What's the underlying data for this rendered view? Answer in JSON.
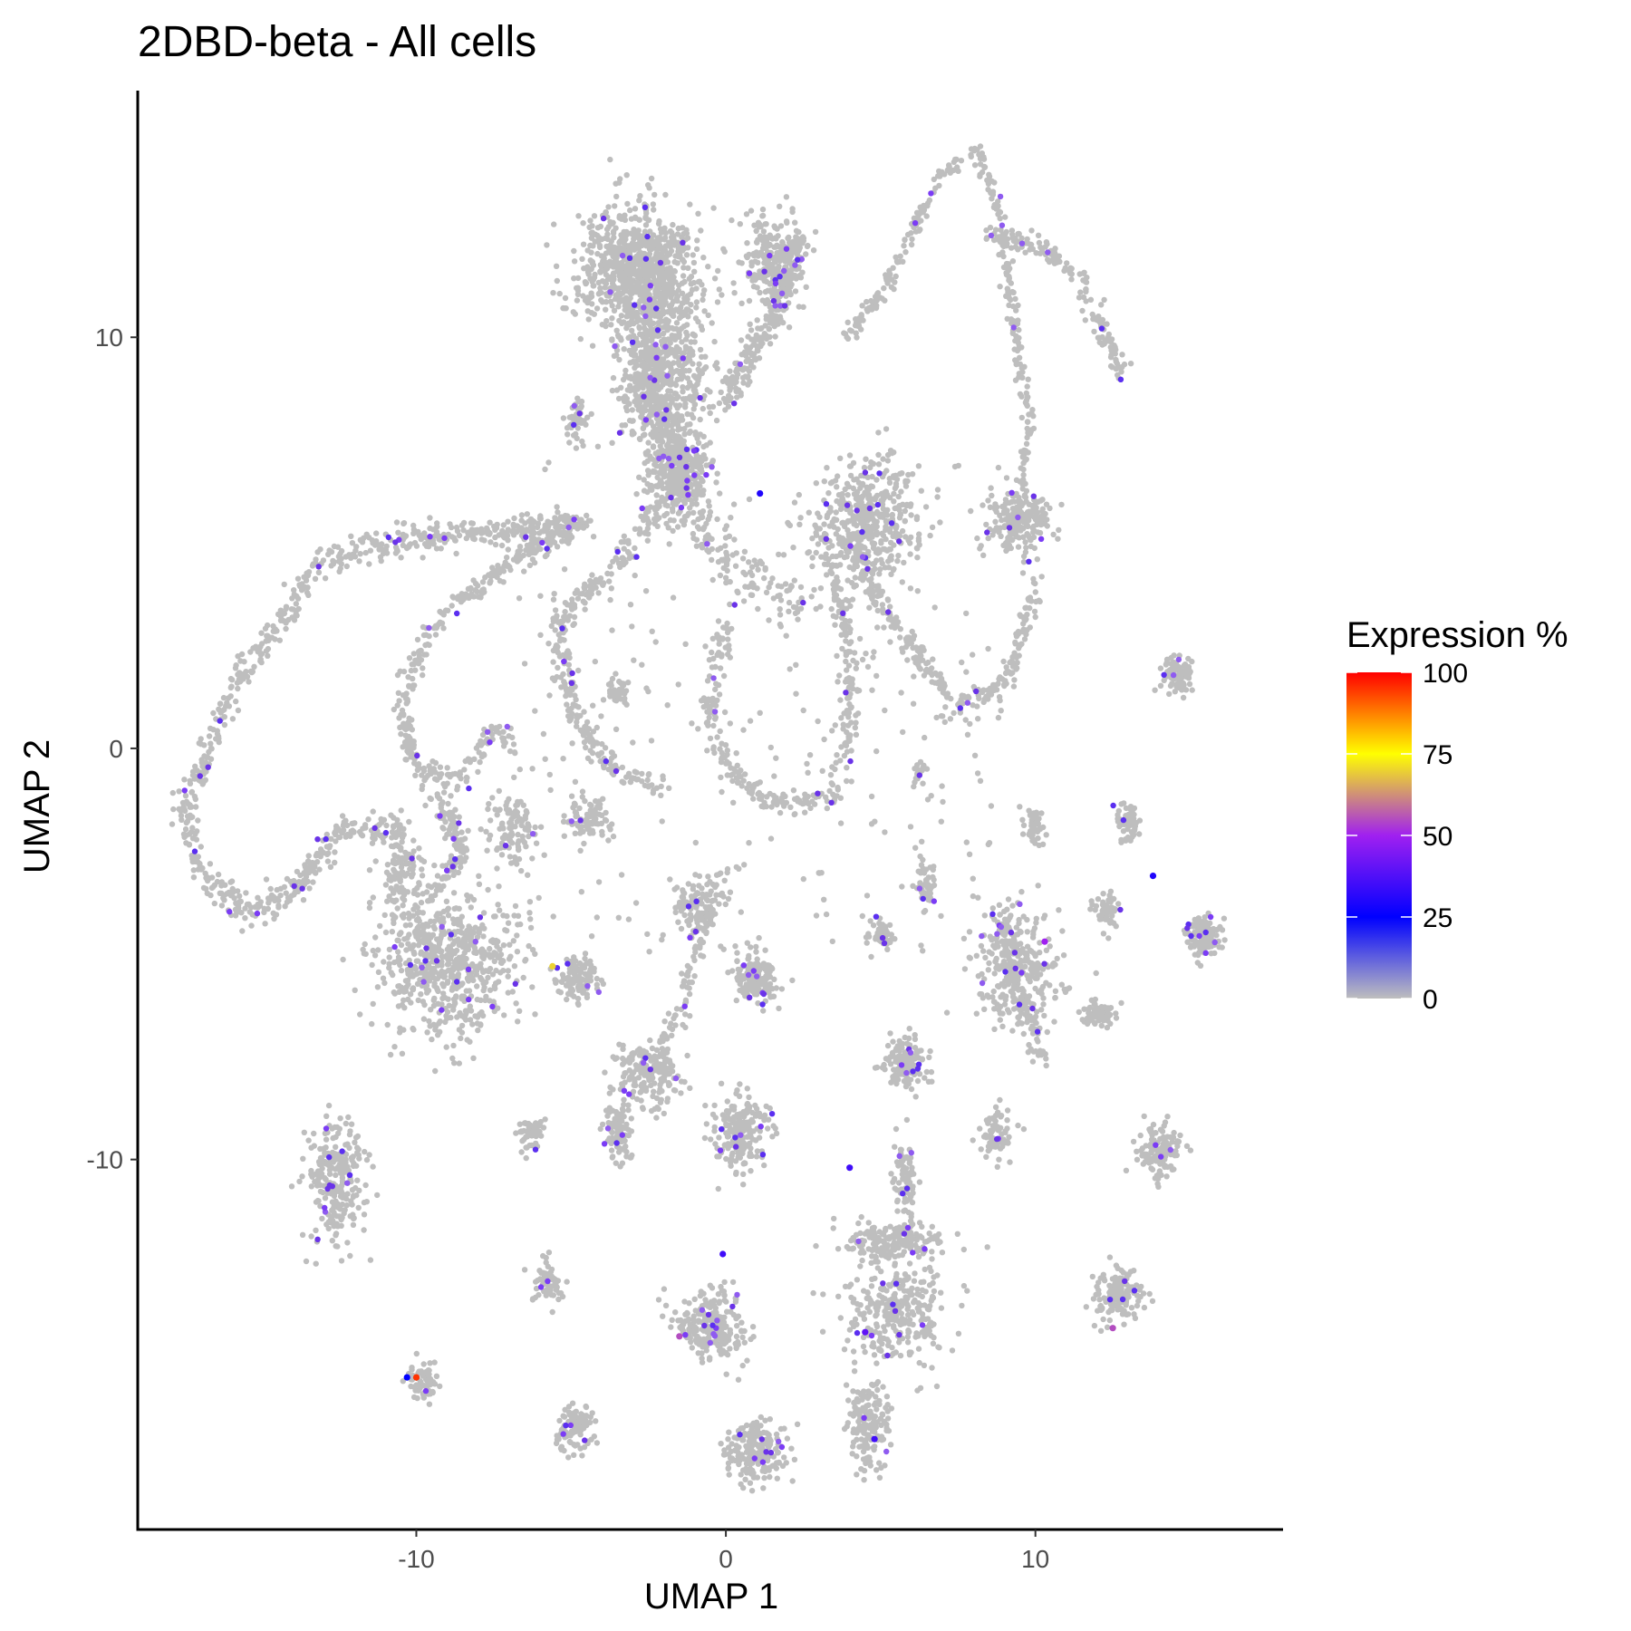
{
  "chart_data": {
    "type": "scatter",
    "title": "2DBD-beta - All cells",
    "xlabel": "UMAP 1",
    "ylabel": "UMAP 2",
    "xlim": [
      -19,
      18
    ],
    "ylim": [
      -19,
      16
    ],
    "x_ticks": [
      -10,
      0,
      10
    ],
    "y_ticks": [
      10,
      0,
      -10
    ],
    "x_tick_labels": [
      "-10",
      "0",
      "10"
    ],
    "y_tick_labels": [
      "10",
      "0",
      "-10"
    ],
    "grid": false,
    "legend": {
      "title": "Expression %",
      "placement": "right",
      "breaks": [
        100,
        75,
        50,
        25,
        0
      ],
      "labels": [
        "100",
        "75",
        "50",
        "25",
        "0"
      ],
      "gradient": [
        {
          "value": 0,
          "color": "#bebebe"
        },
        {
          "value": 25,
          "color": "#0000ff"
        },
        {
          "value": 50,
          "color": "#a020f0"
        },
        {
          "value": 75,
          "color": "#ffff00"
        },
        {
          "value": 100,
          "color": "#ff0000"
        }
      ]
    },
    "base_color": "#bebebe",
    "clusters": [
      {
        "name": "",
        "x": -2.8,
        "y": 11.6,
        "sx": 1.6,
        "sy": 1.3,
        "n": 900
      },
      {
        "name": "",
        "x": -2.0,
        "y": 9.0,
        "sx": 1.2,
        "sy": 1.5,
        "n": 500
      },
      {
        "name": "",
        "x": -1.5,
        "y": 6.8,
        "sx": 0.9,
        "sy": 0.9,
        "n": 300
      },
      {
        "name": "",
        "x": 1.5,
        "y": 11.8,
        "sx": 0.8,
        "sy": 1.0,
        "n": 250
      },
      {
        "name": "",
        "x": 4.6,
        "y": 5.5,
        "sx": 1.3,
        "sy": 1.2,
        "n": 450
      },
      {
        "name": "",
        "x": 9.5,
        "y": 5.5,
        "sx": 0.8,
        "sy": 0.6,
        "n": 200
      },
      {
        "name": "",
        "x": -9.0,
        "y": -5.2,
        "sx": 1.8,
        "sy": 1.4,
        "n": 650
      },
      {
        "name": "",
        "x": -12.6,
        "y": -10.5,
        "sx": 0.8,
        "sy": 1.3,
        "n": 250
      },
      {
        "name": "",
        "x": 0.5,
        "y": -9.3,
        "sx": 0.7,
        "sy": 0.8,
        "n": 220
      },
      {
        "name": "",
        "x": -0.5,
        "y": -14.0,
        "sx": 1.0,
        "sy": 0.7,
        "n": 260
      },
      {
        "name": "",
        "x": 1.0,
        "y": -17.1,
        "sx": 0.8,
        "sy": 0.6,
        "n": 200
      },
      {
        "name": "",
        "x": 5.5,
        "y": -13.8,
        "sx": 1.3,
        "sy": 1.0,
        "n": 300
      },
      {
        "name": "",
        "x": 4.6,
        "y": -16.5,
        "sx": 0.6,
        "sy": 0.9,
        "n": 160
      },
      {
        "name": "",
        "x": 5.5,
        "y": -12.0,
        "sx": 1.3,
        "sy": 0.4,
        "n": 200
      },
      {
        "name": "",
        "x": 5.8,
        "y": -10.5,
        "sx": 0.3,
        "sy": 0.8,
        "n": 90
      },
      {
        "name": "",
        "x": 1.0,
        "y": -5.6,
        "sx": 0.6,
        "sy": 0.5,
        "n": 150
      },
      {
        "name": "",
        "x": -4.8,
        "y": -5.6,
        "sx": 0.5,
        "sy": 0.4,
        "n": 120
      },
      {
        "name": "",
        "x": -2.5,
        "y": -7.9,
        "sx": 0.9,
        "sy": 0.7,
        "n": 180
      },
      {
        "name": "",
        "x": -3.5,
        "y": -9.3,
        "sx": 0.4,
        "sy": 0.6,
        "n": 90
      },
      {
        "name": "",
        "x": 5.8,
        "y": -7.6,
        "sx": 0.6,
        "sy": 0.5,
        "n": 140
      },
      {
        "name": "",
        "x": 9.5,
        "y": -5.3,
        "sx": 1.2,
        "sy": 1.2,
        "n": 260
      },
      {
        "name": "",
        "x": 15.4,
        "y": -4.6,
        "sx": 0.45,
        "sy": 0.45,
        "n": 120
      },
      {
        "name": "",
        "x": 14.6,
        "y": 1.8,
        "sx": 0.4,
        "sy": 0.4,
        "n": 90
      },
      {
        "name": "",
        "x": 14.0,
        "y": -9.8,
        "sx": 0.55,
        "sy": 0.5,
        "n": 130
      },
      {
        "name": "",
        "x": 12.7,
        "y": -13.3,
        "sx": 0.6,
        "sy": 0.6,
        "n": 140
      },
      {
        "name": "",
        "x": 13.0,
        "y": -1.8,
        "sx": 0.3,
        "sy": 0.4,
        "n": 60
      },
      {
        "name": "",
        "x": 12.3,
        "y": -4.0,
        "sx": 0.3,
        "sy": 0.35,
        "n": 60
      },
      {
        "name": "",
        "x": 12.0,
        "y": -6.5,
        "sx": 0.4,
        "sy": 0.3,
        "n": 70
      },
      {
        "name": "",
        "x": 8.7,
        "y": -9.4,
        "sx": 0.4,
        "sy": 0.5,
        "n": 80
      },
      {
        "name": "",
        "x": 5.0,
        "y": -4.5,
        "sx": 0.4,
        "sy": 0.3,
        "n": 60
      },
      {
        "name": "",
        "x": 6.5,
        "y": -3.3,
        "sx": 0.3,
        "sy": 0.4,
        "n": 50
      },
      {
        "name": "",
        "x": -5.8,
        "y": -13.0,
        "sx": 0.4,
        "sy": 0.4,
        "n": 70
      },
      {
        "name": "",
        "x": -4.9,
        "y": -16.5,
        "sx": 0.5,
        "sy": 0.5,
        "n": 100
      },
      {
        "name": "",
        "x": -9.7,
        "y": -15.4,
        "sx": 0.4,
        "sy": 0.4,
        "n": 70
      },
      {
        "name": "",
        "x": -6.3,
        "y": -9.3,
        "sx": 0.3,
        "sy": 0.4,
        "n": 50
      },
      {
        "name": "",
        "x": -1.0,
        "y": -3.8,
        "sx": 0.6,
        "sy": 0.5,
        "n": 90
      },
      {
        "name": "",
        "x": -4.5,
        "y": -1.7,
        "sx": 0.6,
        "sy": 0.4,
        "n": 80
      },
      {
        "name": "",
        "x": -7.0,
        "y": -2.0,
        "sx": 0.6,
        "sy": 0.7,
        "n": 100
      },
      {
        "name": "",
        "x": -10.5,
        "y": -3.0,
        "sx": 0.6,
        "sy": 0.8,
        "n": 100
      },
      {
        "name": "",
        "x": -3.5,
        "y": 1.4,
        "sx": 0.3,
        "sy": 0.3,
        "n": 40
      },
      {
        "name": "",
        "x": -4.8,
        "y": 8.0,
        "sx": 0.3,
        "sy": 0.4,
        "n": 50
      },
      {
        "name": "",
        "x": 10.0,
        "y": -1.9,
        "sx": 0.3,
        "sy": 0.4,
        "n": 50
      },
      {
        "name": "",
        "x": 6.2,
        "y": -0.6,
        "sx": 0.2,
        "sy": 0.2,
        "n": 20
      }
    ],
    "paths": [
      {
        "name": "",
        "points": [
          [
            -4.5,
            5.5
          ],
          [
            -8,
            5.2
          ],
          [
            -11,
            5.0
          ],
          [
            -13,
            4.6
          ],
          [
            -15,
            2.5
          ],
          [
            -16.5,
            0.5
          ],
          [
            -17.5,
            -1.5
          ],
          [
            -17,
            -3.0
          ],
          [
            -15.5,
            -4.0
          ],
          [
            -14,
            -3.5
          ],
          [
            -12.5,
            -2.0
          ],
          [
            -10.5,
            -2.0
          ]
        ],
        "spread": 0.35,
        "n": 800
      },
      {
        "name": "",
        "points": [
          [
            -4.5,
            5.5
          ],
          [
            -7,
            4.5
          ],
          [
            -9.5,
            3.0
          ],
          [
            -10.5,
            1.0
          ],
          [
            -10,
            -0.5
          ],
          [
            -8.5,
            -0.8
          ],
          [
            -7.5,
            0.5
          ],
          [
            -6.8,
            0.0
          ]
        ],
        "spread": 0.3,
        "n": 350
      },
      {
        "name": "",
        "points": [
          [
            -1.5,
            6.5
          ],
          [
            -3.5,
            4.5
          ],
          [
            -5.5,
            3.0
          ],
          [
            -5.0,
            1.0
          ],
          [
            -4.0,
            -0.3
          ],
          [
            -2.0,
            -1.0
          ]
        ],
        "spread": 0.3,
        "n": 300
      },
      {
        "name": "",
        "points": [
          [
            -1.5,
            6.5
          ],
          [
            -2.5,
            8.5
          ],
          [
            -2.5,
            10.5
          ]
        ],
        "spread": 0.6,
        "n": 250
      },
      {
        "name": "",
        "points": [
          [
            0,
            8.5
          ],
          [
            1.5,
            10.5
          ],
          [
            2.5,
            12.5
          ]
        ],
        "spread": 0.35,
        "n": 250
      },
      {
        "name": "",
        "points": [
          [
            0,
            3.0
          ],
          [
            -0.5,
            1.0
          ],
          [
            0,
            -0.5
          ],
          [
            1.5,
            -1.3
          ],
          [
            3.5,
            -1.2
          ],
          [
            4.0,
            0.5
          ],
          [
            4.0,
            2.5
          ],
          [
            3.0,
            5.5
          ]
        ],
        "spread": 0.3,
        "n": 350
      },
      {
        "name": "",
        "points": [
          [
            4.0,
            5.0
          ],
          [
            5.0,
            3.5
          ],
          [
            6.0,
            2.5
          ],
          [
            7.5,
            1.0
          ],
          [
            9.0,
            1.5
          ],
          [
            10.0,
            4.0
          ]
        ],
        "spread": 0.3,
        "n": 260
      },
      {
        "name": "",
        "points": [
          [
            9.5,
            5.5
          ],
          [
            9.8,
            8.0
          ],
          [
            9.2,
            11.0
          ],
          [
            8.8,
            13.0
          ],
          [
            8.2,
            14.5
          ],
          [
            7.0,
            14.0
          ],
          [
            6.0,
            12.5
          ],
          [
            5.0,
            11.0
          ],
          [
            3.8,
            10.0
          ]
        ],
        "spread": 0.2,
        "n": 320
      },
      {
        "name": "",
        "points": [
          [
            8.5,
            12.5
          ],
          [
            10.2,
            12.2
          ],
          [
            11.5,
            11.5
          ],
          [
            12.2,
            10.0
          ],
          [
            12.8,
            9.0
          ]
        ],
        "spread": 0.25,
        "n": 160
      },
      {
        "name": "",
        "points": [
          [
            8.8,
            -4.0
          ],
          [
            9.5,
            -6.0
          ],
          [
            10.2,
            -7.5
          ]
        ],
        "spread": 0.35,
        "n": 120
      },
      {
        "name": "",
        "points": [
          [
            0,
            -3.0
          ],
          [
            -1.0,
            -5.0
          ],
          [
            -1.5,
            -6.5
          ],
          [
            -2.5,
            -7.5
          ]
        ],
        "spread": 0.3,
        "n": 100
      },
      {
        "name": "",
        "points": [
          [
            -9.5,
            -1.0
          ],
          [
            -8.5,
            -2.5
          ],
          [
            -9.5,
            -3.5
          ]
        ],
        "spread": 0.35,
        "n": 120
      },
      {
        "name": "",
        "points": [
          [
            2.5,
            3.5
          ],
          [
            1.0,
            4.0
          ],
          [
            -0.5,
            5.0
          ],
          [
            -1.5,
            6.5
          ]
        ],
        "spread": 0.6,
        "n": 160
      }
    ],
    "highlight_points": [
      {
        "x": -10.0,
        "y": -15.3,
        "value": 95
      },
      {
        "x": -10.3,
        "y": -15.3,
        "value": 25
      },
      {
        "x": -1.5,
        "y": -14.3,
        "value": 55
      },
      {
        "x": 4.5,
        "y": -14.2,
        "value": 40
      },
      {
        "x": 12.5,
        "y": -14.1,
        "value": 55
      },
      {
        "x": 10.3,
        "y": -4.7,
        "value": 50
      },
      {
        "x": 1.1,
        "y": 6.2,
        "value": 30
      },
      {
        "x": -5.6,
        "y": -5.3,
        "value": 70
      },
      {
        "x": 4.8,
        "y": -16.8,
        "value": 35
      },
      {
        "x": 4.0,
        "y": -10.2,
        "value": 35
      },
      {
        "x": -0.1,
        "y": -12.3,
        "value": 35
      },
      {
        "x": 13.8,
        "y": -3.1,
        "value": 30
      }
    ]
  }
}
